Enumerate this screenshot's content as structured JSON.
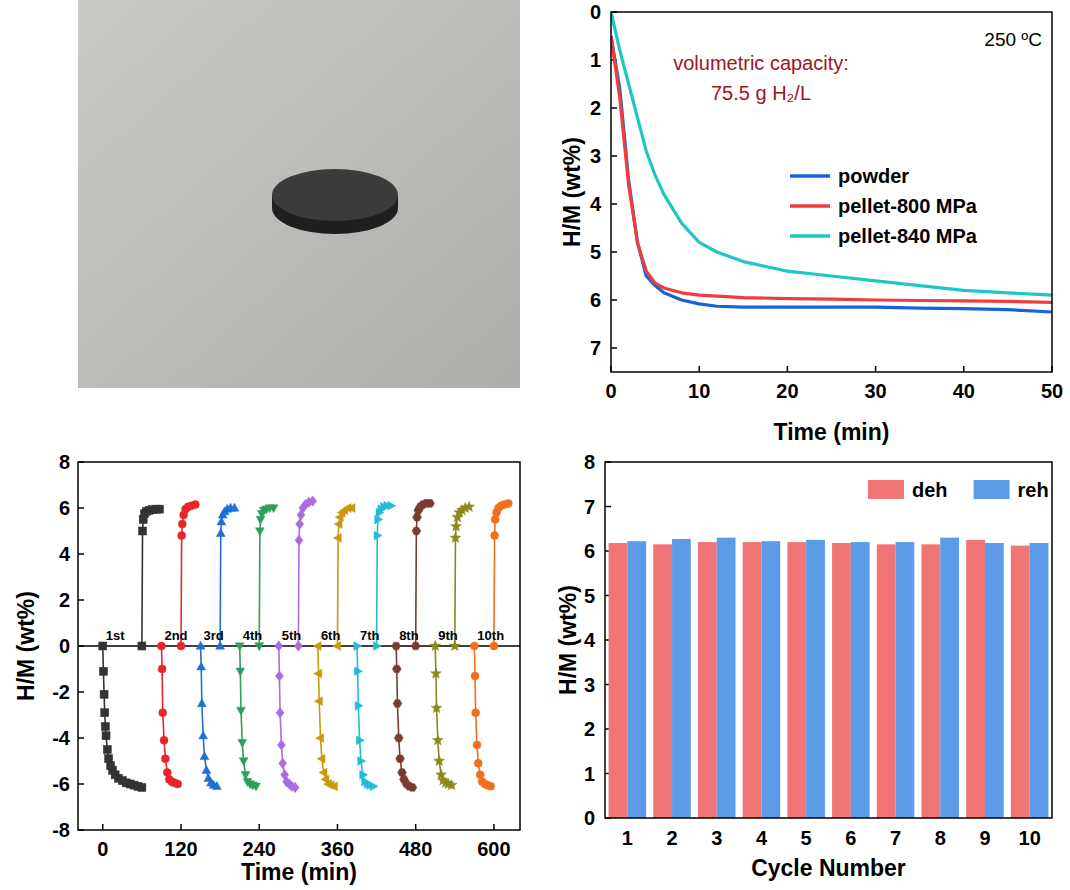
{
  "chart_data": [
    {
      "type": "line",
      "x_label": "Time (min)",
      "y_label": "H/M (wt%)",
      "annotations": [
        {
          "text": "250 ºC",
          "color": "#000000"
        },
        {
          "text": "volumetric capacity:",
          "color": "#a0141e"
        },
        {
          "text": "75.5 g H₂/L",
          "color": "#a0141e"
        }
      ],
      "x": [
        0,
        1,
        2,
        3,
        4,
        5,
        6,
        8,
        10,
        12,
        15,
        20,
        25,
        30,
        35,
        40,
        45,
        50
      ],
      "series": [
        {
          "name": "powder",
          "color": "#1763de",
          "values": [
            0.5,
            1.6,
            3.5,
            4.8,
            5.5,
            5.7,
            5.85,
            6.0,
            6.08,
            6.13,
            6.15,
            6.15,
            6.15,
            6.15,
            6.17,
            6.18,
            6.2,
            6.25
          ]
        },
        {
          "name": "pellet-800 MPa",
          "color": "#f03c3c",
          "values": [
            0.5,
            1.8,
            3.6,
            4.8,
            5.4,
            5.65,
            5.75,
            5.85,
            5.9,
            5.92,
            5.95,
            5.97,
            5.98,
            6.0,
            6.01,
            6.02,
            6.03,
            6.05
          ]
        },
        {
          "name": "pellet-840 MPa",
          "color": "#1fc6c6",
          "values": [
            0,
            0.8,
            1.5,
            2.2,
            2.9,
            3.4,
            3.8,
            4.4,
            4.8,
            5.0,
            5.2,
            5.4,
            5.5,
            5.6,
            5.7,
            5.8,
            5.85,
            5.9
          ]
        }
      ],
      "xlim": [
        0,
        50
      ],
      "xticks": [
        0,
        10,
        20,
        30,
        40,
        50
      ],
      "ylim": [
        7.5,
        0
      ],
      "yticks": [
        0,
        1,
        2,
        3,
        4,
        5,
        6,
        7
      ],
      "legend": "right"
    },
    {
      "type": "line",
      "x_label": "Time (min)",
      "y_label": "H/M (wt%)",
      "hline": 0,
      "series": [
        {
          "name": "1st",
          "color": "#333333",
          "marker": "square",
          "x": [
            0,
            1,
            2,
            3,
            4,
            5,
            7,
            9,
            12,
            15,
            19,
            24,
            30,
            36,
            42,
            48,
            54,
            60,
            null,
            60,
            61,
            62,
            64,
            67,
            71,
            76,
            82,
            87
          ],
          "values": [
            0,
            -1.1,
            -2.1,
            -2.9,
            -3.5,
            -3.9,
            -4.5,
            -4.9,
            -5.2,
            -5.4,
            -5.6,
            -5.75,
            -5.85,
            -5.95,
            -6.0,
            -6.05,
            -6.1,
            -6.15,
            null,
            0,
            5.0,
            5.5,
            5.75,
            5.85,
            5.9,
            5.93,
            5.95,
            5.95
          ]
        },
        {
          "name": "2nd",
          "color": "#e8262a",
          "marker": "circle",
          "x": [
            90,
            91,
            92,
            94,
            96,
            99,
            102,
            106,
            110,
            115,
            null,
            120,
            121,
            122,
            124,
            127,
            131,
            136,
            142
          ],
          "values": [
            0,
            -1.0,
            -2.9,
            -4.1,
            -4.9,
            -5.5,
            -5.8,
            -5.9,
            -5.95,
            -6.0,
            null,
            0,
            4.8,
            5.3,
            5.7,
            5.95,
            6.05,
            6.1,
            6.15
          ]
        },
        {
          "name": "3rd",
          "color": "#1f6fd6",
          "marker": "triangle-up",
          "x": [
            150,
            151,
            152,
            154,
            156,
            159,
            162,
            166,
            170,
            175,
            null,
            180,
            181,
            182,
            184,
            187,
            191,
            196,
            202
          ],
          "values": [
            0,
            -0.9,
            -2.5,
            -3.9,
            -4.8,
            -5.4,
            -5.75,
            -5.95,
            -6.05,
            -6.1,
            null,
            0,
            4.9,
            5.4,
            5.7,
            5.85,
            5.95,
            6.0,
            6.0
          ]
        },
        {
          "name": "4th",
          "color": "#2ca05a",
          "marker": "triangle-down",
          "x": [
            210,
            211,
            212,
            214,
            216,
            219,
            222,
            226,
            230,
            235,
            null,
            240,
            241,
            242,
            244,
            247,
            251,
            256,
            262
          ],
          "values": [
            0,
            -1.1,
            -2.8,
            -4.2,
            -5.0,
            -5.6,
            -5.9,
            -6.0,
            -6.05,
            -6.1,
            null,
            0,
            5.0,
            5.5,
            5.75,
            5.9,
            5.95,
            6.0,
            6.0
          ]
        },
        {
          "name": "5th",
          "color": "#a86ee0",
          "marker": "diamond",
          "x": [
            270,
            271,
            272,
            274,
            276,
            279,
            282,
            286,
            290,
            295,
            null,
            300,
            301,
            302,
            304,
            307,
            311,
            316,
            322
          ],
          "values": [
            0,
            -1.3,
            -2.9,
            -4.3,
            -5.1,
            -5.6,
            -5.9,
            -6.0,
            -6.1,
            -6.15,
            null,
            0,
            4.6,
            5.3,
            5.7,
            6.0,
            6.15,
            6.25,
            6.3
          ]
        },
        {
          "name": "6th",
          "color": "#c89a10",
          "marker": "triangle-left",
          "x": [
            330,
            331,
            332,
            334,
            336,
            339,
            342,
            346,
            350,
            355,
            null,
            360,
            361,
            362,
            364,
            367,
            371,
            376,
            382
          ],
          "values": [
            0,
            -1.2,
            -2.4,
            -4.0,
            -4.9,
            -5.5,
            -5.8,
            -6.0,
            -6.05,
            -6.1,
            null,
            0,
            4.7,
            5.3,
            5.6,
            5.8,
            5.9,
            6.0,
            6.0
          ]
        },
        {
          "name": "7th",
          "color": "#22bcd4",
          "marker": "triangle-right",
          "x": [
            390,
            391,
            392,
            394,
            396,
            399,
            402,
            406,
            410,
            415,
            null,
            420,
            421,
            422,
            424,
            427,
            431,
            436,
            442
          ],
          "values": [
            0,
            -1.1,
            -2.6,
            -4.1,
            -5.0,
            -5.6,
            -5.9,
            -6.0,
            -6.05,
            -6.1,
            null,
            0,
            4.8,
            5.5,
            5.8,
            5.95,
            6.05,
            6.1,
            6.1
          ]
        },
        {
          "name": "8th",
          "color": "#7a3b30",
          "marker": "hexagon",
          "x": [
            450,
            451,
            452,
            454,
            456,
            459,
            462,
            466,
            470,
            475,
            null,
            480,
            481,
            482,
            484,
            487,
            491,
            496,
            502
          ],
          "values": [
            0,
            -1.0,
            -2.5,
            -4.0,
            -4.9,
            -5.5,
            -5.8,
            -6.0,
            -6.1,
            -6.15,
            null,
            0,
            5.0,
            5.6,
            5.9,
            6.05,
            6.15,
            6.2,
            6.2
          ]
        },
        {
          "name": "9th",
          "color": "#8a8a18",
          "marker": "star",
          "x": [
            510,
            511,
            512,
            514,
            516,
            519,
            522,
            526,
            530,
            535,
            null,
            540,
            541,
            542,
            544,
            547,
            551,
            556,
            562
          ],
          "values": [
            0,
            -1.2,
            -2.7,
            -4.1,
            -5.0,
            -5.6,
            -5.85,
            -5.95,
            -6.0,
            -6.05,
            null,
            0,
            4.7,
            5.2,
            5.6,
            5.8,
            5.9,
            6.0,
            6.05
          ]
        },
        {
          "name": "10th",
          "color": "#f07020",
          "marker": "circle",
          "x": [
            570,
            571,
            572,
            574,
            576,
            579,
            582,
            586,
            590,
            595,
            null,
            600,
            601,
            602,
            604,
            607,
            611,
            616,
            622
          ],
          "values": [
            0,
            -1.3,
            -2.9,
            -4.3,
            -5.1,
            -5.6,
            -5.9,
            -6.0,
            -6.05,
            -6.1,
            null,
            0,
            4.8,
            5.5,
            5.8,
            6.0,
            6.1,
            6.15,
            6.2
          ]
        }
      ],
      "xlim": [
        -38,
        640
      ],
      "xticks": [
        0,
        120,
        240,
        360,
        480,
        600
      ],
      "ylim": [
        -8,
        8
      ],
      "yticks": [
        -8,
        -6,
        -4,
        -2,
        0,
        2,
        4,
        6,
        8
      ]
    },
    {
      "type": "bar",
      "x_label": "Cycle Number",
      "y_label": "H/M (wt%)",
      "categories": [
        "1",
        "2",
        "3",
        "4",
        "5",
        "6",
        "7",
        "8",
        "9",
        "10"
      ],
      "series": [
        {
          "name": "deh",
          "color": "#f07575",
          "values": [
            6.18,
            6.15,
            6.2,
            6.2,
            6.2,
            6.18,
            6.15,
            6.15,
            6.25,
            6.12
          ]
        },
        {
          "name": "reh",
          "color": "#5b9be8",
          "values": [
            6.22,
            6.27,
            6.3,
            6.22,
            6.25,
            6.2,
            6.2,
            6.3,
            6.18,
            6.18
          ]
        }
      ],
      "ylim": [
        0,
        8
      ],
      "yticks": [
        0,
        1,
        2,
        3,
        4,
        5,
        6,
        7,
        8
      ],
      "legend": "top-right"
    }
  ]
}
